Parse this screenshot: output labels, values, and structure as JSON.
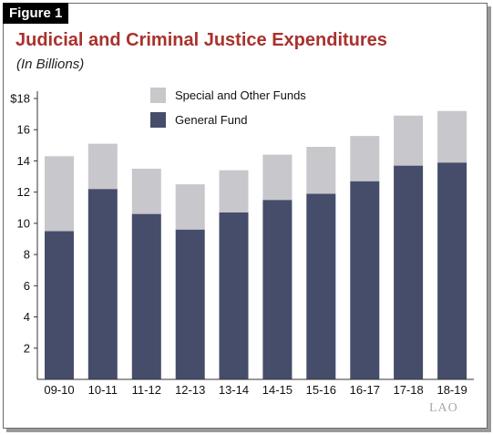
{
  "figure_label": "Figure 1",
  "logo_text": "LAO",
  "colors": {
    "general_fund": "#454d6a",
    "special_funds": "#c8c7cb",
    "title": "#a8322d"
  },
  "chart_data": {
    "type": "bar",
    "stacked": true,
    "title": "Judicial and Criminal Justice Expenditures",
    "subtitle": "(In Billions)",
    "categories": [
      "09-10",
      "10-11",
      "11-12",
      "12-13",
      "13-14",
      "14-15",
      "15-16",
      "16-17",
      "17-18",
      "18-19"
    ],
    "series": [
      {
        "name": "General Fund",
        "color": "#454d6a",
        "values": [
          9.5,
          12.2,
          10.6,
          9.6,
          10.7,
          11.5,
          11.9,
          12.7,
          13.7,
          13.9
        ]
      },
      {
        "name": "Special and Other Funds",
        "color": "#c8c7cb",
        "values": [
          4.8,
          2.9,
          2.9,
          2.9,
          2.7,
          2.9,
          3.0,
          2.9,
          3.2,
          3.3
        ]
      }
    ],
    "legend_order": [
      "Special and Other Funds",
      "General Fund"
    ],
    "legend_position": "top-left",
    "ylim": [
      0,
      18
    ],
    "yticks": [
      2,
      4,
      6,
      8,
      10,
      12,
      14,
      16,
      18
    ],
    "ytick_labels": [
      "2",
      "4",
      "6",
      "8",
      "10",
      "12",
      "14",
      "16",
      "$18"
    ],
    "grid": false
  }
}
